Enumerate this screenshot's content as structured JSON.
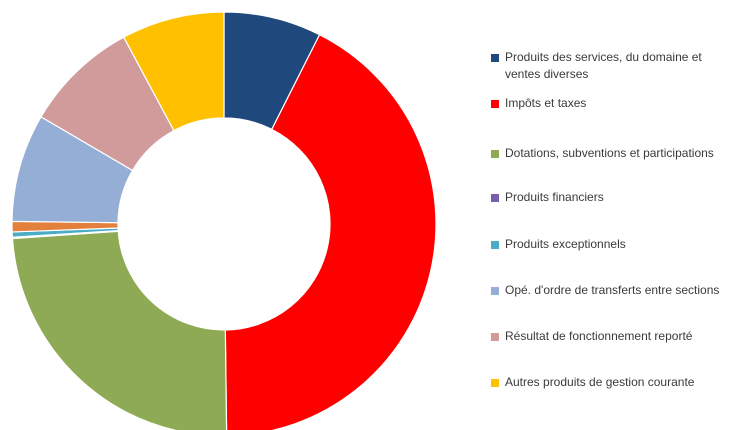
{
  "chart_data": {
    "type": "pie",
    "donut": true,
    "title": "",
    "legend_position": "right",
    "slices": [
      {
        "label": "Produits des services, du domaine et ventes diverses",
        "value": 7.5,
        "color": "#1f497d"
      },
      {
        "label": "Impôts et taxes",
        "value": 42.7,
        "color": "#ff0000"
      },
      {
        "label": "Dotations, subventions et participations",
        "value": 24.3,
        "color": "#8faa54"
      },
      {
        "label": "Produits financiers",
        "value": 0.1,
        "color": "#7a5ea8"
      },
      {
        "label": "Produits exceptionnels",
        "value": 0.4,
        "color": "#4bacc6"
      },
      {
        "label": "Opé. d'ordre de transferts entre sections",
        "value": 8.3,
        "color": "#95aed6"
      },
      {
        "label": "Résultat de fonctionnement reporté",
        "value": 8.8,
        "color": "#d29b9b"
      },
      {
        "label": "Autres produits de gestion courante",
        "value": 7.9,
        "color": "#ffc000"
      }
    ],
    "extra_slices": [
      {
        "label": "",
        "value": 0.8,
        "color": "#e3803c",
        "after_index": 4
      }
    ]
  }
}
